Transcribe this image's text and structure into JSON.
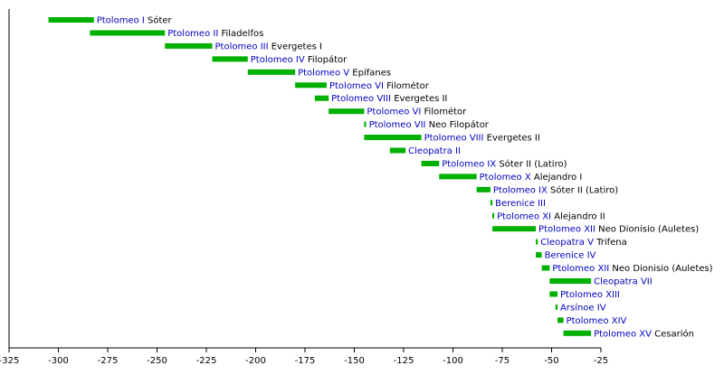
{
  "chart_data": {
    "type": "bar",
    "title": "",
    "xlabel": "",
    "ylabel": "",
    "xlim": [
      -325,
      -25
    ],
    "x_ticks": [
      -325,
      -300,
      -275,
      -250,
      -225,
      -200,
      -175,
      -150,
      -125,
      -100,
      -75,
      -50,
      -25
    ],
    "bar_color": "#00b000",
    "name_color": "#0000c0",
    "text_color": "#000000",
    "grid": false,
    "bars": [
      {
        "name": "Ptolomeo I",
        "epithet": "Sóter",
        "start": -305,
        "end": -282
      },
      {
        "name": "Ptolomeo II",
        "epithet": "Filadelfos",
        "start": -284,
        "end": -246
      },
      {
        "name": "Ptolomeo III",
        "epithet": "Evergetes I",
        "start": -246,
        "end": -222
      },
      {
        "name": "Ptolomeo IV",
        "epithet": "Filopátor",
        "start": -222,
        "end": -204
      },
      {
        "name": "Ptolomeo V",
        "epithet": "Epífanes",
        "start": -204,
        "end": -180
      },
      {
        "name": "Ptolomeo VI",
        "epithet": "Filométor",
        "start": -180,
        "end": -164
      },
      {
        "name": "Ptolomeo VIII",
        "epithet": "Evergetes II",
        "start": -170,
        "end": -163
      },
      {
        "name": "Ptolomeo VI",
        "epithet": "Filométor",
        "start": -163,
        "end": -145
      },
      {
        "name": "Ptolomeo VII",
        "epithet": "Neo Filopátor",
        "start": -145,
        "end": -144
      },
      {
        "name": "Ptolomeo VIII",
        "epithet": "Evergetes II",
        "start": -145,
        "end": -116
      },
      {
        "name": "Cleopatra II",
        "epithet": "",
        "start": -132,
        "end": -124
      },
      {
        "name": "Ptolomeo IX",
        "epithet": "Sóter II (Latiro)",
        "start": -116,
        "end": -107
      },
      {
        "name": "Ptolomeo X",
        "epithet": "Alejandro I",
        "start": -107,
        "end": -88
      },
      {
        "name": "Ptolomeo IX",
        "epithet": "Sóter II (Latiro)",
        "start": -88,
        "end": -81
      },
      {
        "name": "Berenice III",
        "epithet": "",
        "start": -81,
        "end": -80
      },
      {
        "name": "Ptolomeo XI",
        "epithet": "Alejandro II",
        "start": -80,
        "end": -80
      },
      {
        "name": "Ptolomeo XII",
        "epithet": "Neo Dionisio (Auletes)",
        "start": -80,
        "end": -58
      },
      {
        "name": "Cleopatra V",
        "epithet": "Trifena",
        "start": -58,
        "end": -57
      },
      {
        "name": "Berenice IV",
        "epithet": "",
        "start": -58,
        "end": -55
      },
      {
        "name": "Ptolomeo XII",
        "epithet": "Neo Dionisio (Auletes)",
        "start": -55,
        "end": -51
      },
      {
        "name": "Cleopatra VII",
        "epithet": "",
        "start": -51,
        "end": -30
      },
      {
        "name": "Ptolomeo XIII",
        "epithet": "",
        "start": -51,
        "end": -47
      },
      {
        "name": "Arsínoe IV",
        "epithet": "",
        "start": -48,
        "end": -47
      },
      {
        "name": "Ptolomeo XIV",
        "epithet": "",
        "start": -47,
        "end": -44
      },
      {
        "name": "Ptolomeo XV",
        "epithet": "Cesarión",
        "start": -44,
        "end": -30
      }
    ]
  }
}
